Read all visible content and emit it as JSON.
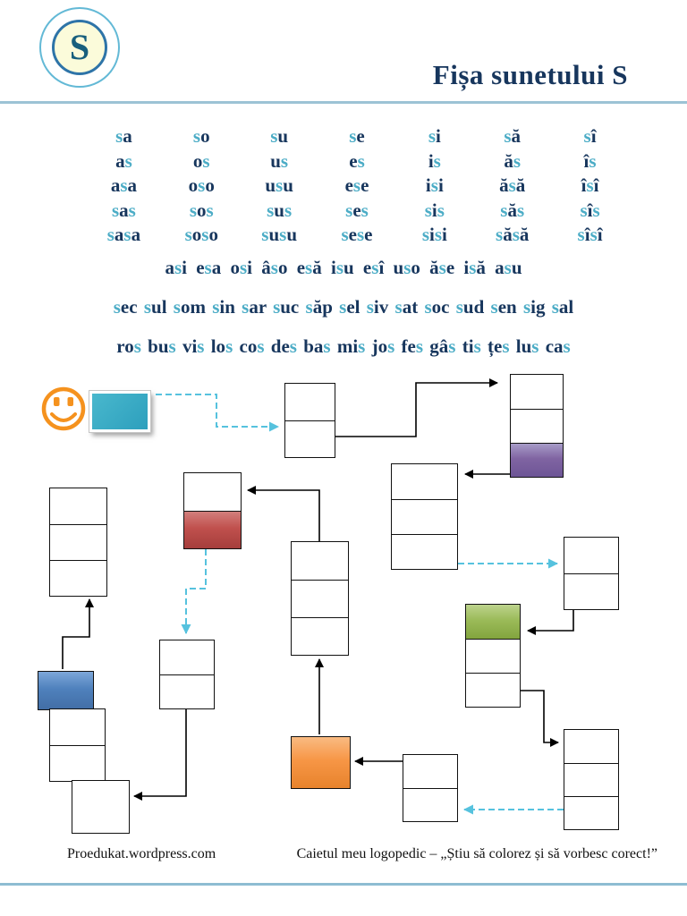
{
  "badge": {
    "letter": "S"
  },
  "title": "Fișa sunetului S",
  "syllable_table": {
    "rows": [
      [
        "sa",
        "so",
        "su",
        "se",
        "si",
        "să",
        "sî"
      ],
      [
        "as",
        "os",
        "us",
        "es",
        "is",
        "ăs",
        "îs"
      ],
      [
        "asa",
        "oso",
        "usu",
        "ese",
        "isi",
        "ăsă",
        "îsî"
      ],
      [
        "sas",
        "sos",
        "sus",
        "ses",
        "sis",
        "săs",
        "sîs"
      ],
      [
        "sasa",
        "soso",
        "susu",
        "sese",
        "sisi",
        "săsă",
        "sîsî"
      ]
    ]
  },
  "word_lines": [
    "asi esa osi âso esă isu esî uso ăse isă asu",
    "sec sul som sin sar suc săp sel siv sat soc sud sen sig sal",
    "ros bus vis los cos des bas mis jos fes gâs tis țes lus cas"
  ],
  "footer": {
    "left": "Proedukat.wordpress.com",
    "right": "Caietul meu logopedic – „Știu să colorez și să vorbesc corect!”"
  },
  "icons": {
    "smiley": "smiley-face",
    "card": "teal-color-card"
  },
  "colors": {
    "highlight_s": "#4bacc6",
    "dark_text": "#17365d",
    "divider": "#9cc3d5",
    "dashed_arrow": "#56c2de",
    "smiley_orange": "#f5921e",
    "card_teal": "#35adc5",
    "cell_purple": "#8064a2",
    "cell_red": "#c0504d",
    "cell_blue": "#4f81bd",
    "cell_green": "#9bbb59",
    "cell_orange": "#f79646"
  }
}
